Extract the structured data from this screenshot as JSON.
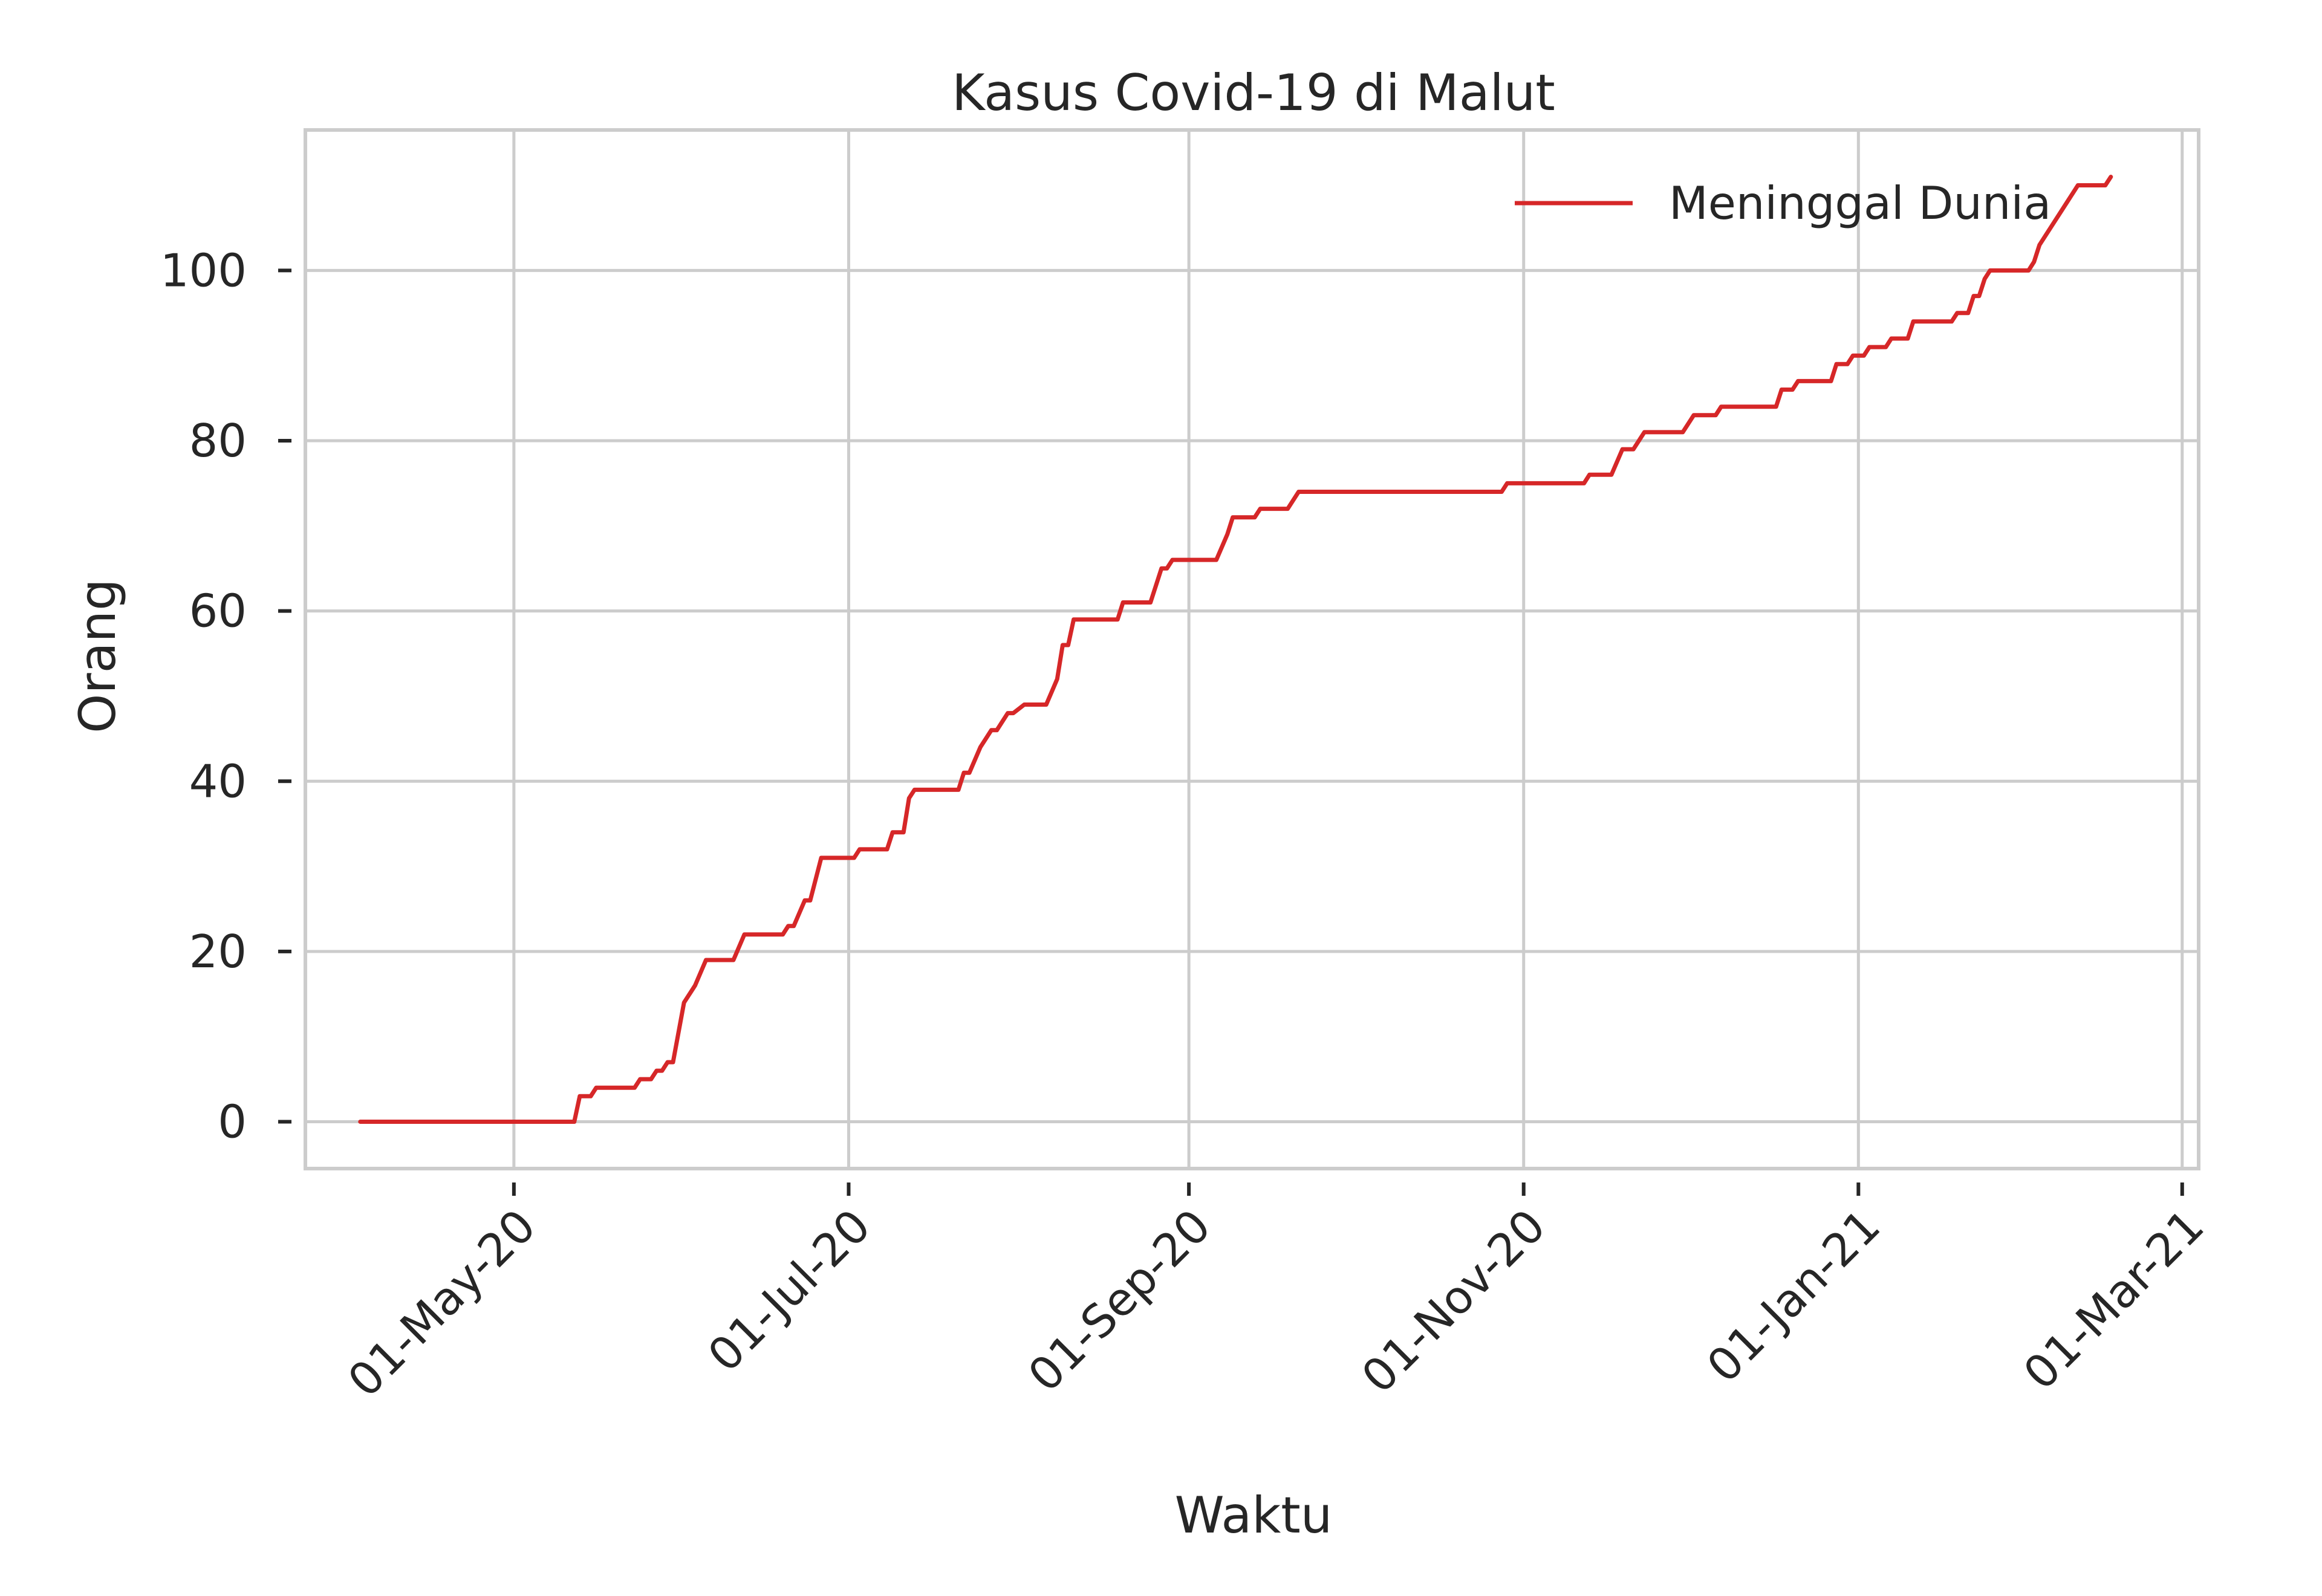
{
  "chart_data": {
    "type": "line",
    "title": "Kasus Covid-19 di Malut",
    "xlabel": "Waktu",
    "ylabel": "Orang",
    "x_type": "date",
    "xlim": [
      "2020-03-24",
      "2021-03-04"
    ],
    "ylim": [
      -5.5,
      116.5
    ],
    "grid": true,
    "legend_position": "top-right",
    "x_ticks": [
      {
        "date": "2020-05-01",
        "label": "01-May-20"
      },
      {
        "date": "2020-07-01",
        "label": "01-Jul-20"
      },
      {
        "date": "2020-09-01",
        "label": "01-Sep-20"
      },
      {
        "date": "2020-11-01",
        "label": "01-Nov-20"
      },
      {
        "date": "2021-01-01",
        "label": "01-Jan-21"
      },
      {
        "date": "2021-03-01",
        "label": "01-Mar-21"
      }
    ],
    "y_ticks": [
      0,
      20,
      40,
      60,
      80,
      100
    ],
    "series": [
      {
        "name": "Meninggal Dunia",
        "color": "#d62728",
        "points": [
          [
            "2020-04-03",
            0
          ],
          [
            "2020-05-12",
            0
          ],
          [
            "2020-05-13",
            3
          ],
          [
            "2020-05-15",
            3
          ],
          [
            "2020-05-16",
            4
          ],
          [
            "2020-05-23",
            4
          ],
          [
            "2020-05-24",
            5
          ],
          [
            "2020-05-26",
            5
          ],
          [
            "2020-05-27",
            6
          ],
          [
            "2020-05-28",
            6
          ],
          [
            "2020-05-29",
            7
          ],
          [
            "2020-05-30",
            7
          ],
          [
            "2020-06-01",
            14
          ],
          [
            "2020-06-03",
            16
          ],
          [
            "2020-06-05",
            19
          ],
          [
            "2020-06-10",
            19
          ],
          [
            "2020-06-12",
            22
          ],
          [
            "2020-06-19",
            22
          ],
          [
            "2020-06-20",
            23
          ],
          [
            "2020-06-21",
            23
          ],
          [
            "2020-06-23",
            26
          ],
          [
            "2020-06-24",
            26
          ],
          [
            "2020-06-26",
            31
          ],
          [
            "2020-07-02",
            31
          ],
          [
            "2020-07-03",
            32
          ],
          [
            "2020-07-08",
            32
          ],
          [
            "2020-07-09",
            34
          ],
          [
            "2020-07-11",
            34
          ],
          [
            "2020-07-12",
            38
          ],
          [
            "2020-07-13",
            39
          ],
          [
            "2020-07-21",
            39
          ],
          [
            "2020-07-22",
            41
          ],
          [
            "2020-07-23",
            41
          ],
          [
            "2020-07-25",
            44
          ],
          [
            "2020-07-27",
            46
          ],
          [
            "2020-07-28",
            46
          ],
          [
            "2020-07-30",
            48
          ],
          [
            "2020-07-31",
            48
          ],
          [
            "2020-08-02",
            49
          ],
          [
            "2020-08-06",
            49
          ],
          [
            "2020-08-08",
            52
          ],
          [
            "2020-08-09",
            56
          ],
          [
            "2020-08-10",
            56
          ],
          [
            "2020-08-11",
            59
          ],
          [
            "2020-08-19",
            59
          ],
          [
            "2020-08-20",
            61
          ],
          [
            "2020-08-25",
            61
          ],
          [
            "2020-08-27",
            65
          ],
          [
            "2020-08-28",
            65
          ],
          [
            "2020-08-29",
            66
          ],
          [
            "2020-09-06",
            66
          ],
          [
            "2020-09-08",
            69
          ],
          [
            "2020-09-09",
            71
          ],
          [
            "2020-09-13",
            71
          ],
          [
            "2020-09-14",
            72
          ],
          [
            "2020-09-19",
            72
          ],
          [
            "2020-09-21",
            74
          ],
          [
            "2020-10-28",
            74
          ],
          [
            "2020-10-29",
            75
          ],
          [
            "2020-11-12",
            75
          ],
          [
            "2020-11-13",
            76
          ],
          [
            "2020-11-17",
            76
          ],
          [
            "2020-11-19",
            79
          ],
          [
            "2020-11-21",
            79
          ],
          [
            "2020-11-23",
            81
          ],
          [
            "2020-11-30",
            81
          ],
          [
            "2020-12-02",
            83
          ],
          [
            "2020-12-06",
            83
          ],
          [
            "2020-12-07",
            84
          ],
          [
            "2020-12-17",
            84
          ],
          [
            "2020-12-18",
            86
          ],
          [
            "2020-12-20",
            86
          ],
          [
            "2020-12-21",
            87
          ],
          [
            "2020-12-27",
            87
          ],
          [
            "2020-12-28",
            89
          ],
          [
            "2020-12-30",
            89
          ],
          [
            "2020-12-31",
            90
          ],
          [
            "2021-01-02",
            90
          ],
          [
            "2021-01-03",
            91
          ],
          [
            "2021-01-06",
            91
          ],
          [
            "2021-01-07",
            92
          ],
          [
            "2021-01-10",
            92
          ],
          [
            "2021-01-11",
            94
          ],
          [
            "2021-01-18",
            94
          ],
          [
            "2021-01-19",
            95
          ],
          [
            "2021-01-21",
            95
          ],
          [
            "2021-01-22",
            97
          ],
          [
            "2021-01-23",
            97
          ],
          [
            "2021-01-24",
            99
          ],
          [
            "2021-01-25",
            100
          ],
          [
            "2021-02-01",
            100
          ],
          [
            "2021-02-02",
            101
          ],
          [
            "2021-02-03",
            103
          ],
          [
            "2021-02-05",
            105
          ],
          [
            "2021-02-07",
            107
          ],
          [
            "2021-02-08",
            108
          ],
          [
            "2021-02-10",
            110
          ],
          [
            "2021-02-15",
            110
          ],
          [
            "2021-02-16",
            111
          ]
        ]
      }
    ]
  }
}
